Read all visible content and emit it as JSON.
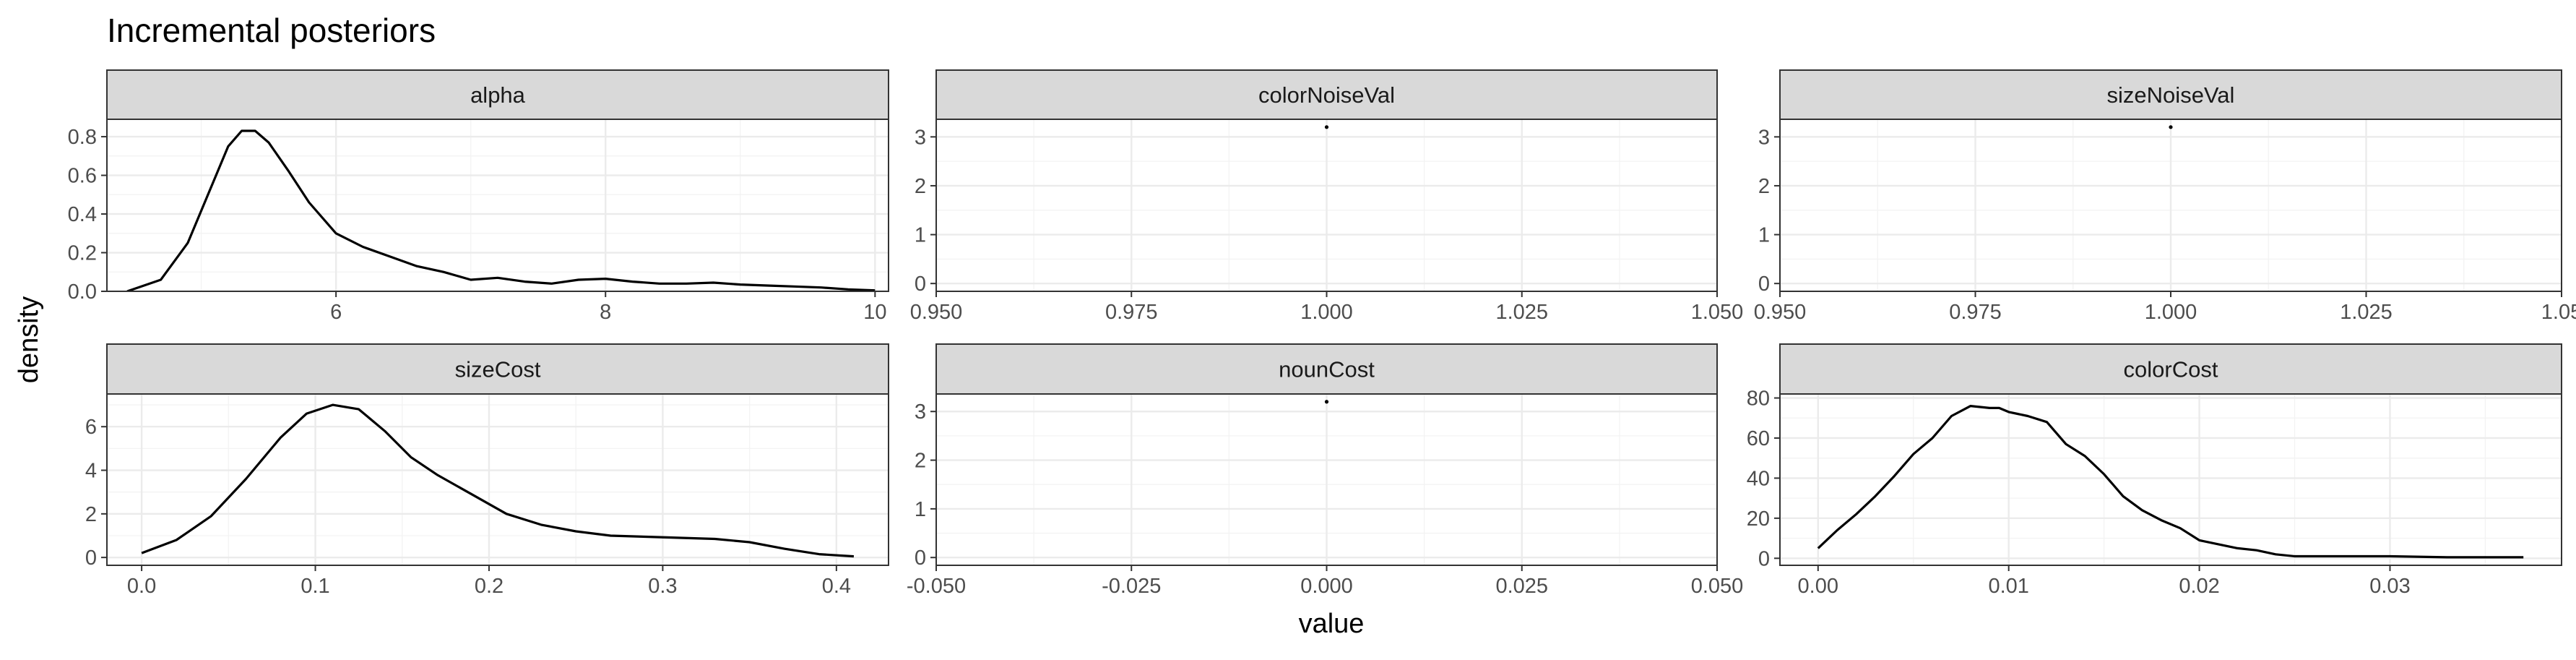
{
  "chart_data": {
    "type": "line",
    "title": "Incremental posteriors",
    "xlabel": "value",
    "ylabel": "density",
    "grid": true,
    "legend": "none",
    "panels": [
      {
        "name": "alpha",
        "xlim": [
          4.3,
          10.1
        ],
        "ylim": [
          0,
          0.89
        ],
        "xticks": [
          {
            "v": 6,
            "label": "6"
          },
          {
            "v": 8,
            "label": "8"
          },
          {
            "v": 10,
            "label": "10"
          }
        ],
        "yticks": [
          {
            "v": 0,
            "label": "0.0"
          },
          {
            "v": 0.2,
            "label": "0.2"
          },
          {
            "v": 0.4,
            "label": "0.4"
          },
          {
            "v": 0.6,
            "label": "0.6"
          },
          {
            "v": 0.8,
            "label": "0.8"
          }
        ],
        "x": [
          4.45,
          4.7,
          4.9,
          5.05,
          5.2,
          5.3,
          5.4,
          5.5,
          5.65,
          5.8,
          6.0,
          6.2,
          6.4,
          6.6,
          6.8,
          7.0,
          7.2,
          7.4,
          7.6,
          7.8,
          8.0,
          8.2,
          8.4,
          8.6,
          8.8,
          9.0,
          9.2,
          9.4,
          9.6,
          9.8,
          10.0
        ],
        "y": [
          0.0,
          0.06,
          0.25,
          0.5,
          0.75,
          0.83,
          0.83,
          0.77,
          0.62,
          0.46,
          0.3,
          0.23,
          0.18,
          0.13,
          0.1,
          0.06,
          0.07,
          0.05,
          0.04,
          0.06,
          0.065,
          0.05,
          0.04,
          0.04,
          0.045,
          0.035,
          0.03,
          0.025,
          0.02,
          0.01,
          0.005
        ]
      },
      {
        "name": "colorNoiseVal",
        "xlim": [
          0.95,
          1.05
        ],
        "ylim": [
          -0.16,
          3.36
        ],
        "xticks": [
          {
            "v": 0.95,
            "label": "0.950"
          },
          {
            "v": 0.975,
            "label": "0.975"
          },
          {
            "v": 1.0,
            "label": "1.000"
          },
          {
            "v": 1.025,
            "label": "1.025"
          },
          {
            "v": 1.05,
            "label": "1.050"
          }
        ],
        "yticks": [
          {
            "v": 0,
            "label": "0"
          },
          {
            "v": 1,
            "label": "1"
          },
          {
            "v": 2,
            "label": "2"
          },
          {
            "v": 3,
            "label": "3"
          }
        ],
        "x": [
          1.0
        ],
        "y": [
          3.2
        ]
      },
      {
        "name": "sizeNoiseVal",
        "xlim": [
          0.95,
          1.05
        ],
        "ylim": [
          -0.16,
          3.36
        ],
        "xticks": [
          {
            "v": 0.95,
            "label": "0.950"
          },
          {
            "v": 0.975,
            "label": "0.975"
          },
          {
            "v": 1.0,
            "label": "1.000"
          },
          {
            "v": 1.025,
            "label": "1.025"
          },
          {
            "v": 1.05,
            "label": "1.05"
          }
        ],
        "yticks": [
          {
            "v": 0,
            "label": "0"
          },
          {
            "v": 1,
            "label": "1"
          },
          {
            "v": 2,
            "label": "2"
          },
          {
            "v": 3,
            "label": "3"
          }
        ],
        "x": [
          1.0
        ],
        "y": [
          3.2
        ]
      },
      {
        "name": "sizeCost",
        "xlim": [
          -0.02,
          0.43
        ],
        "ylim": [
          -0.36,
          7.5
        ],
        "xticks": [
          {
            "v": 0.0,
            "label": "0.0"
          },
          {
            "v": 0.1,
            "label": "0.1"
          },
          {
            "v": 0.2,
            "label": "0.2"
          },
          {
            "v": 0.3,
            "label": "0.3"
          },
          {
            "v": 0.4,
            "label": "0.4"
          }
        ],
        "yticks": [
          {
            "v": 0,
            "label": "0"
          },
          {
            "v": 2,
            "label": "2"
          },
          {
            "v": 4,
            "label": "4"
          },
          {
            "v": 6,
            "label": "6"
          }
        ],
        "x": [
          0.0,
          0.02,
          0.04,
          0.06,
          0.08,
          0.095,
          0.11,
          0.125,
          0.14,
          0.155,
          0.17,
          0.19,
          0.21,
          0.23,
          0.25,
          0.27,
          0.29,
          0.31,
          0.33,
          0.35,
          0.37,
          0.39,
          0.41
        ],
        "y": [
          0.2,
          0.8,
          1.9,
          3.6,
          5.5,
          6.6,
          7.0,
          6.8,
          5.8,
          4.6,
          3.8,
          2.9,
          2.0,
          1.5,
          1.2,
          1.0,
          0.95,
          0.9,
          0.85,
          0.7,
          0.4,
          0.15,
          0.05
        ]
      },
      {
        "name": "nounCost",
        "xlim": [
          -0.05,
          0.05
        ],
        "ylim": [
          -0.16,
          3.36
        ],
        "xticks": [
          {
            "v": -0.05,
            "label": "-0.050"
          },
          {
            "v": -0.025,
            "label": "-0.025"
          },
          {
            "v": 0.0,
            "label": "0.000"
          },
          {
            "v": 0.025,
            "label": "0.025"
          },
          {
            "v": 0.05,
            "label": "0.050"
          }
        ],
        "yticks": [
          {
            "v": 0,
            "label": "0"
          },
          {
            "v": 1,
            "label": "1"
          },
          {
            "v": 2,
            "label": "2"
          },
          {
            "v": 3,
            "label": "3"
          }
        ],
        "x": [
          0.0
        ],
        "y": [
          3.2
        ]
      },
      {
        "name": "colorCost",
        "xlim": [
          -0.002,
          0.039
        ],
        "ylim": [
          -3.5,
          82
        ],
        "xticks": [
          {
            "v": 0.0,
            "label": "0.00"
          },
          {
            "v": 0.01,
            "label": "0.01"
          },
          {
            "v": 0.02,
            "label": "0.02"
          },
          {
            "v": 0.03,
            "label": "0.03"
          }
        ],
        "yticks": [
          {
            "v": 0,
            "label": "0"
          },
          {
            "v": 20,
            "label": "20"
          },
          {
            "v": 40,
            "label": "40"
          },
          {
            "v": 60,
            "label": "60"
          },
          {
            "v": 80,
            "label": "80"
          }
        ],
        "x": [
          0.0,
          0.001,
          0.002,
          0.003,
          0.004,
          0.005,
          0.006,
          0.007,
          0.008,
          0.009,
          0.0095,
          0.01,
          0.011,
          0.012,
          0.013,
          0.014,
          0.015,
          0.016,
          0.017,
          0.018,
          0.019,
          0.02,
          0.021,
          0.022,
          0.023,
          0.024,
          0.025,
          0.027,
          0.03,
          0.033,
          0.037
        ],
        "y": [
          5,
          14,
          22,
          31,
          41,
          52,
          60,
          71,
          76,
          75,
          75,
          73,
          71,
          68,
          57,
          51,
          42,
          31,
          24,
          19,
          15,
          9,
          7,
          5,
          4,
          2,
          1,
          1,
          1,
          0.5,
          0.5
        ]
      }
    ]
  }
}
